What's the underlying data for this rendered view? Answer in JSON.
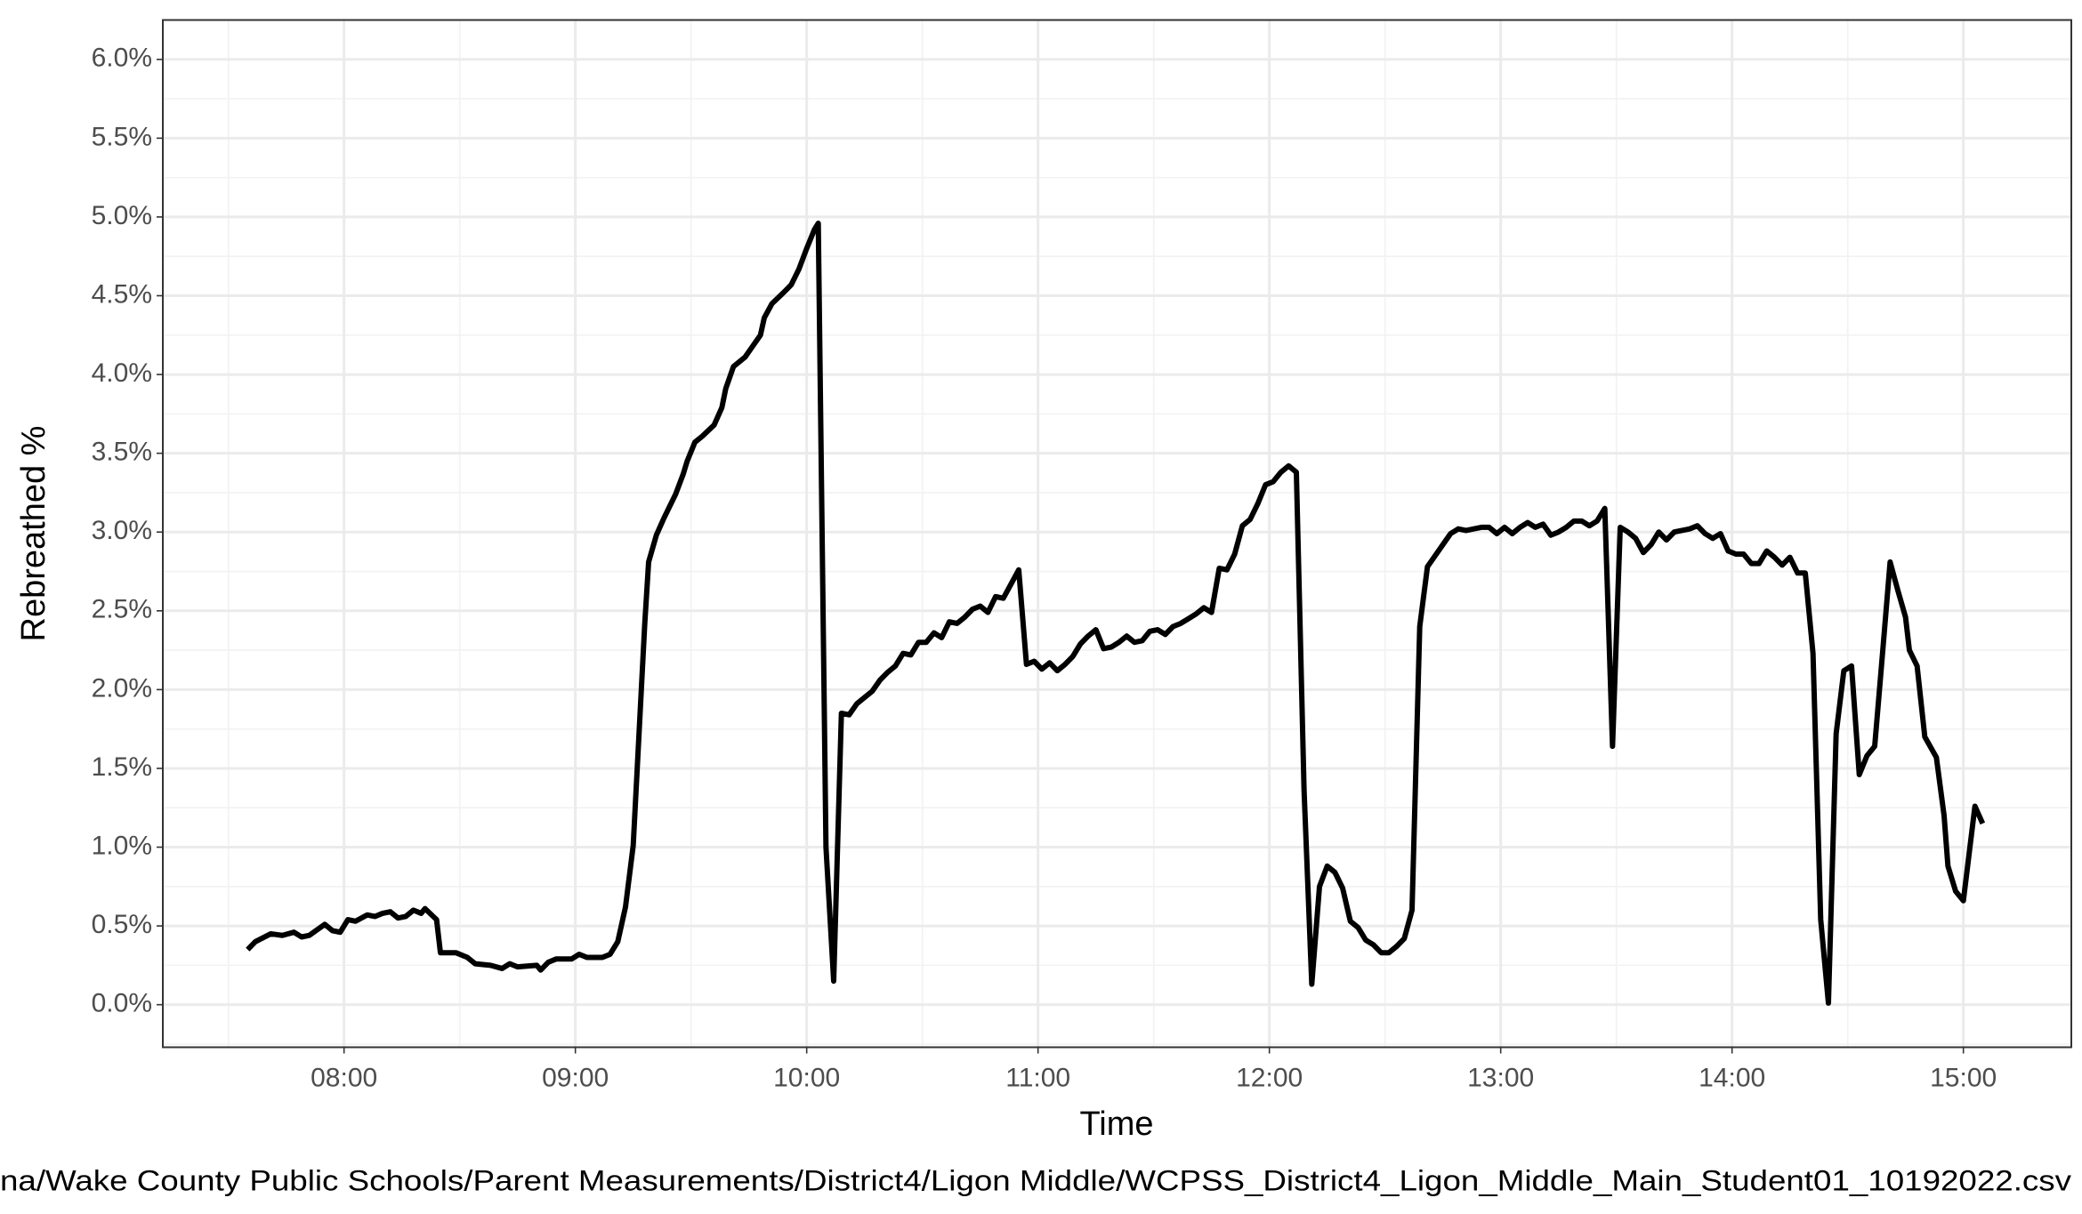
{
  "chart_data": {
    "type": "line",
    "x_label": "Time",
    "y_label": "Rebreathed %",
    "caption": "na/Wake County Public Schools/Parent Measurements/District4/Ligon Middle/WCPSS_District4_Ligon_Middle_Main_Student01_10192022.csv",
    "color": "#000000",
    "grid": true,
    "xlim": [
      "07:13",
      "15:28"
    ],
    "xticks": [
      "08:00",
      "09:00",
      "10:00",
      "11:00",
      "12:00",
      "13:00",
      "14:00",
      "15:00"
    ],
    "ylim": [
      -0.27,
      6.25
    ],
    "yticks": [
      {
        "value": 0,
        "label": "0.0%"
      },
      {
        "value": 0.5,
        "label": "0.5%"
      },
      {
        "value": 1,
        "label": "1.0%"
      },
      {
        "value": 1.5,
        "label": "1.5%"
      },
      {
        "value": 2,
        "label": "2.0%"
      },
      {
        "value": 2.5,
        "label": "2.5%"
      },
      {
        "value": 3,
        "label": "3.0%"
      },
      {
        "value": 3.5,
        "label": "3.5%"
      },
      {
        "value": 4,
        "label": "4.0%"
      },
      {
        "value": 4.5,
        "label": "4.5%"
      },
      {
        "value": 5,
        "label": "5.0%"
      },
      {
        "value": 5.5,
        "label": "5.5%"
      },
      {
        "value": 6,
        "label": "6.0%"
      }
    ],
    "x": [
      "07:35",
      "07:37",
      "07:41",
      "07:44",
      "07:47",
      "07:49",
      "07:51",
      "07:55",
      "07:57",
      "07:59",
      "08:01",
      "08:03",
      "08:06",
      "08:08",
      "08:10",
      "08:12",
      "08:14",
      "08:16",
      "08:18",
      "08:20",
      "08:21",
      "08:24",
      "08:25",
      "08:29",
      "08:32",
      "08:34",
      "08:38",
      "08:41",
      "08:43",
      "08:45",
      "08:50",
      "08:51",
      "08:53",
      "08:55",
      "08:59",
      "09:01",
      "09:03",
      "09:07",
      "09:09",
      "09:11",
      "09:13",
      "09:15",
      "09:18",
      "09:19",
      "09:21",
      "09:23",
      "09:26",
      "09:28",
      "09:29",
      "09:31",
      "09:33",
      "09:36",
      "09:38",
      "09:39",
      "09:41",
      "09:44",
      "09:46",
      "09:48",
      "09:49",
      "09:51",
      "09:54",
      "09:56",
      "09:58",
      "10:00",
      "10:02",
      "10:03",
      "10:05",
      "10:07",
      "10:09",
      "10:11",
      "10:13",
      "10:15",
      "10:17",
      "10:19",
      "10:21",
      "10:23",
      "10:25",
      "10:27",
      "10:29",
      "10:31",
      "10:33",
      "10:35",
      "10:37",
      "10:39",
      "10:41",
      "10:43",
      "10:45",
      "10:47",
      "10:49",
      "10:51",
      "10:53",
      "10:55",
      "10:57",
      "10:59",
      "11:01",
      "11:03",
      "11:05",
      "11:07",
      "11:09",
      "11:11",
      "11:13",
      "11:15",
      "11:17",
      "11:19",
      "11:21",
      "11:23",
      "11:25",
      "11:27",
      "11:29",
      "11:31",
      "11:33",
      "11:35",
      "11:37",
      "11:39",
      "11:41",
      "11:43",
      "11:45",
      "11:47",
      "11:49",
      "11:51",
      "11:53",
      "11:55",
      "11:57",
      "11:59",
      "12:01",
      "12:03",
      "12:05",
      "12:07",
      "12:09",
      "12:11",
      "12:13",
      "12:15",
      "12:17",
      "12:19",
      "12:21",
      "12:23",
      "12:25",
      "12:27",
      "12:29",
      "12:31",
      "12:33",
      "12:35",
      "12:37",
      "12:39",
      "12:41",
      "12:43",
      "12:45",
      "12:47",
      "12:49",
      "12:51",
      "12:53",
      "12:55",
      "12:57",
      "12:59",
      "13:01",
      "13:03",
      "13:05",
      "13:07",
      "13:09",
      "13:11",
      "13:13",
      "13:15",
      "13:17",
      "13:19",
      "13:21",
      "13:23",
      "13:25",
      "13:27",
      "13:29",
      "13:31",
      "13:33",
      "13:35",
      "13:37",
      "13:39",
      "13:41",
      "13:43",
      "13:45",
      "13:47",
      "13:49",
      "13:51",
      "13:53",
      "13:55",
      "13:57",
      "13:59",
      "14:01",
      "14:03",
      "14:05",
      "14:07",
      "14:09",
      "14:11",
      "14:13",
      "14:15",
      "14:17",
      "14:19",
      "14:21",
      "14:23",
      "14:25",
      "14:27",
      "14:29",
      "14:31",
      "14:33",
      "14:35",
      "14:37",
      "14:39",
      "14:41",
      "14:43",
      "14:45",
      "14:46",
      "14:48",
      "14:50",
      "14:53",
      "14:55",
      "14:56",
      "14:58",
      "15:00",
      "15:03",
      "15:05"
    ],
    "values": [
      0.35,
      0.4,
      0.45,
      0.44,
      0.46,
      0.43,
      0.44,
      0.51,
      0.47,
      0.46,
      0.54,
      0.53,
      0.57,
      0.56,
      0.58,
      0.59,
      0.55,
      0.56,
      0.6,
      0.58,
      0.61,
      0.54,
      0.33,
      0.33,
      0.3,
      0.26,
      0.25,
      0.23,
      0.26,
      0.24,
      0.25,
      0.22,
      0.27,
      0.29,
      0.29,
      0.32,
      0.3,
      0.3,
      0.32,
      0.4,
      0.62,
      1.01,
      2.42,
      2.81,
      2.98,
      3.09,
      3.24,
      3.37,
      3.45,
      3.57,
      3.61,
      3.68,
      3.79,
      3.91,
      4.05,
      4.11,
      4.18,
      4.25,
      4.36,
      4.45,
      4.52,
      4.57,
      4.67,
      4.8,
      4.92,
      4.96,
      1.0,
      0.15,
      1.85,
      1.84,
      1.91,
      1.95,
      1.99,
      2.06,
      2.11,
      2.15,
      2.23,
      2.22,
      2.3,
      2.3,
      2.36,
      2.33,
      2.43,
      2.42,
      2.46,
      2.51,
      2.53,
      2.49,
      2.59,
      2.58,
      2.67,
      2.76,
      2.16,
      2.18,
      2.13,
      2.17,
      2.12,
      2.16,
      2.21,
      2.29,
      2.34,
      2.38,
      2.26,
      2.27,
      2.3,
      2.34,
      2.3,
      2.31,
      2.37,
      2.38,
      2.35,
      2.4,
      2.42,
      2.45,
      2.48,
      2.52,
      2.49,
      2.77,
      2.76,
      2.86,
      3.04,
      3.08,
      3.18,
      3.3,
      3.32,
      3.38,
      3.42,
      3.38,
      1.36,
      0.13,
      0.75,
      0.88,
      0.84,
      0.74,
      0.53,
      0.49,
      0.41,
      0.38,
      0.33,
      0.33,
      0.37,
      0.42,
      0.6,
      2.4,
      2.78,
      2.85,
      2.92,
      2.99,
      3.02,
      3.01,
      3.02,
      3.03,
      3.03,
      2.99,
      3.03,
      2.99,
      3.03,
      3.06,
      3.03,
      3.05,
      2.98,
      3.0,
      3.03,
      3.07,
      3.07,
      3.04,
      3.07,
      3.15,
      1.64,
      3.03,
      3.0,
      2.96,
      2.87,
      2.92,
      3.0,
      2.95,
      3.0,
      3.01,
      3.02,
      3.04,
      2.99,
      2.96,
      2.99,
      2.88,
      2.86,
      2.86,
      2.8,
      2.8,
      2.88,
      2.84,
      2.79,
      2.84,
      2.74,
      2.74,
      2.23,
      0.54,
      0.01,
      1.72,
      2.12,
      2.15,
      1.46,
      1.58,
      1.64,
      2.22,
      2.81,
      2.63,
      2.46,
      2.25,
      2.15,
      1.7,
      1.57,
      1.2,
      0.88,
      0.72,
      0.66,
      1.26,
      1.15
    ]
  }
}
